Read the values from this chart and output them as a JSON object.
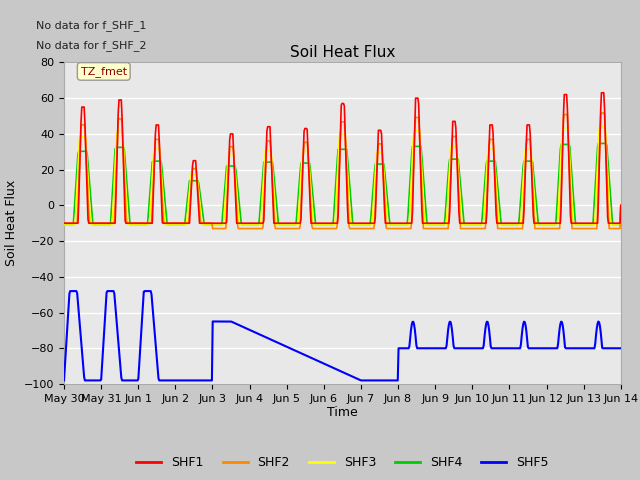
{
  "title": "Soil Heat Flux",
  "ylabel": "Soil Heat Flux",
  "xlabel": "Time",
  "note1": "No data for f_SHF_1",
  "note2": "No data for f_SHF_2",
  "tz_label": "TZ_fmet",
  "ylim": [
    -100,
    80
  ],
  "yticks": [
    -100,
    -80,
    -60,
    -40,
    -20,
    0,
    20,
    40,
    60,
    80
  ],
  "legend_labels": [
    "SHF1",
    "SHF2",
    "SHF3",
    "SHF4",
    "SHF5"
  ],
  "legend_colors": [
    "#ff0000",
    "#ff8800",
    "#ffff00",
    "#00cc00",
    "#0000ff"
  ],
  "fig_bg": "#c8c8c8",
  "plot_bg": "#e8e8e8",
  "xtick_labels": [
    "May 30",
    "May 31",
    "Jun 1",
    "Jun 2",
    "Jun 3",
    "Jun 4",
    "Jun 5",
    "Jun 6",
    "Jun 7",
    "Jun 8",
    "Jun 9",
    "Jun 10",
    "Jun 11",
    "Jun 12",
    "Jun 13",
    "Jun 14"
  ],
  "xtick_positions": [
    0,
    1,
    2,
    3,
    4,
    5,
    6,
    7,
    8,
    9,
    10,
    11,
    12,
    13,
    14,
    15
  ],
  "daily_amps_shf1": [
    55,
    59,
    45,
    25,
    40,
    44,
    43,
    57,
    42,
    60,
    47,
    45,
    45,
    62,
    63
  ],
  "shf1_color": "#ff0000",
  "shf2_color": "#ff8800",
  "shf3_color": "#ffff00",
  "shf4_color": "#00cc00",
  "shf5_color": "#0000ff"
}
